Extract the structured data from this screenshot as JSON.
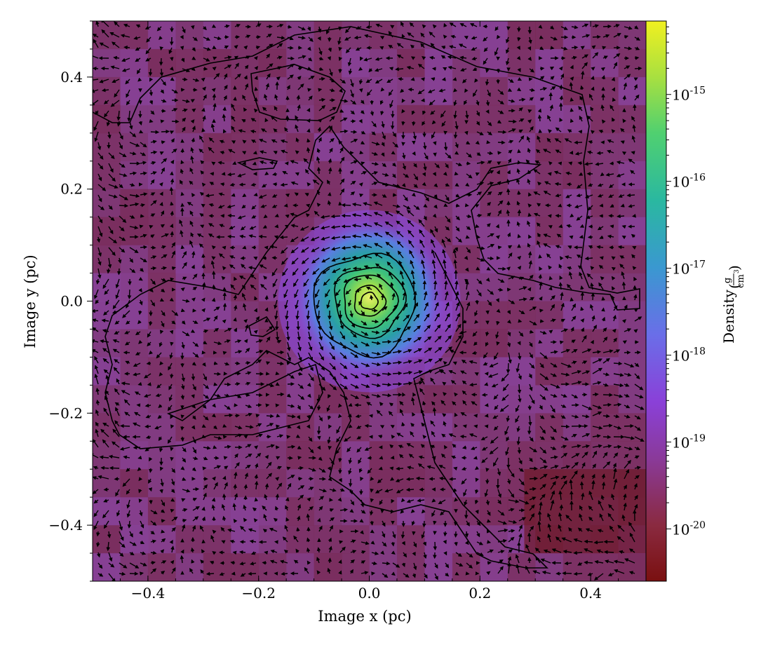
{
  "chart_data": {
    "type": "heatmap",
    "title": "",
    "xlabel": "Image x  (pc)",
    "ylabel": "Image y  (pc)",
    "xlim": [
      -0.5,
      0.5
    ],
    "ylim": [
      -0.5,
      0.5
    ],
    "x_ticks": [
      -0.4,
      -0.2,
      0.0,
      0.2,
      0.4
    ],
    "y_ticks": [
      -0.4,
      -0.2,
      0.0,
      0.2,
      0.4
    ],
    "x_tick_labels": [
      "−0.4",
      "−0.2",
      "0.0",
      "0.2",
      "0.4"
    ],
    "y_tick_labels": [
      "−0.4",
      "−0.2",
      "0.0",
      "0.2",
      "0.4"
    ],
    "colorbar": {
      "label": "Density",
      "unit_numerator": "g",
      "unit_denominator": "cm",
      "unit_denominator_exp": "3",
      "scale": "log",
      "range": [
        2.5e-21,
        7e-15
      ],
      "colormap": "viridis-plasma-red",
      "tick_exponents": [
        -15,
        -16,
        -17,
        -18,
        -19,
        -20
      ],
      "tick_base": "10"
    },
    "overlays": [
      "velocity-quiver-arrows",
      "density-contours"
    ],
    "features": {
      "central_peak_density": 1e-15,
      "central_peak_location": [
        0.0,
        0.0
      ],
      "background_density": 1e-20,
      "rotation": "counterclockwise-swirl"
    }
  }
}
